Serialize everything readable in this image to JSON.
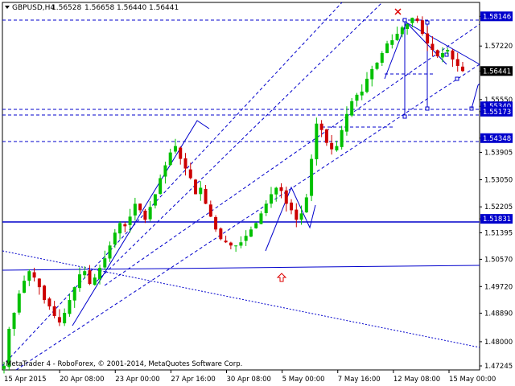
{
  "header": {
    "symbol": "GBPUSD,H4",
    "open": "1.56528",
    "high": "1.56658",
    "low": "1.56440",
    "close": "1.56441"
  },
  "footer": {
    "copyright": "MetaTrader 4 - RoboForex, © 2001-2014, MetaQuotes Software Corp."
  },
  "colors": {
    "candle_up": "#00c000",
    "candle_down": "#cc0000",
    "line_blue": "#0000cc",
    "tag_bg": "#0000cc",
    "current_price_bg": "#000000",
    "marker_red": "#dd0000"
  },
  "chart_data": {
    "type": "candlestick",
    "y_axis_ticks": [
      "1.58146",
      "1.57220",
      "1.56441",
      "1.55550",
      "1.55340",
      "1.55173",
      "1.54348",
      "1.53905",
      "1.53050",
      "1.52205",
      "1.51831",
      "1.51395",
      "1.50570",
      "1.49720",
      "1.48890",
      "1.48000",
      "1.47245"
    ],
    "ylim": [
      1.4712,
      1.5858
    ],
    "x_axis_ticks": [
      "15 Apr 2015",
      "20 Apr 08:00",
      "23 Apr 00:00",
      "27 Apr 16:00",
      "30 Apr 08:00",
      "5 May 00:00",
      "7 May 16:00",
      "12 May 08:00",
      "15 May 00:00"
    ],
    "price_tags": [
      {
        "value": "1.58146",
        "style": "level"
      },
      {
        "value": "1.56441",
        "style": "current"
      },
      {
        "value": "1.55340",
        "style": "level"
      },
      {
        "value": "1.55173",
        "style": "level"
      },
      {
        "value": "1.54348",
        "style": "level"
      },
      {
        "value": "1.51831",
        "style": "level"
      }
    ],
    "series": [
      {
        "name": "GBPUSD,H4",
        "approx_close_path": [
          1.4725,
          1.484,
          1.489,
          1.495,
          1.499,
          1.502,
          1.5,
          1.497,
          1.493,
          1.491,
          1.488,
          1.486,
          1.489,
          1.493,
          1.497,
          1.501,
          1.502,
          1.498,
          1.5,
          1.503,
          1.506,
          1.51,
          1.514,
          1.517,
          1.516,
          1.519,
          1.523,
          1.521,
          1.518,
          1.522,
          1.526,
          1.531,
          1.535,
          1.539,
          1.541,
          1.537,
          1.534,
          1.531,
          1.526,
          1.528,
          1.523,
          1.519,
          1.515,
          1.512,
          1.511,
          1.51,
          1.51,
          1.511,
          1.513,
          1.515,
          1.517,
          1.52,
          1.523,
          1.526,
          1.528,
          1.527,
          1.523,
          1.521,
          1.518,
          1.52,
          1.525,
          1.537,
          1.548,
          1.546,
          1.542,
          1.54,
          1.541,
          1.546,
          1.551,
          1.555,
          1.557,
          1.558,
          1.562,
          1.565,
          1.567,
          1.57,
          1.573,
          1.574,
          1.576,
          1.578,
          1.579,
          1.581,
          1.58,
          1.576,
          1.573,
          1.571,
          1.569,
          1.57,
          1.571,
          1.568,
          1.566,
          1.5644
        ]
      }
    ]
  }
}
